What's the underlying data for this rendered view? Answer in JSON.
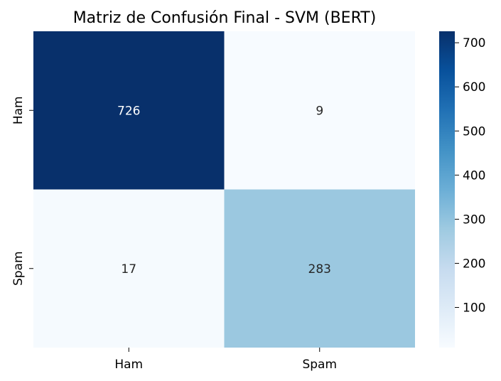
{
  "chart_data": {
    "type": "heatmap",
    "title": "Matriz de Confusión Final - SVM (BERT)",
    "xlabel": "",
    "ylabel": "",
    "x_categories": [
      "Ham",
      "Spam"
    ],
    "y_categories": [
      "Ham",
      "Spam"
    ],
    "values": [
      [
        726,
        9
      ],
      [
        17,
        283
      ]
    ],
    "colormap": "Blues",
    "colorbar": {
      "range": [
        9,
        726
      ],
      "ticks": [
        100,
        200,
        300,
        400,
        500,
        600,
        700
      ]
    },
    "color_stops": [
      "#f7fbff",
      "#deebf7",
      "#c6dbef",
      "#9ecae1",
      "#6baed6",
      "#4292c6",
      "#2171b5",
      "#08519c",
      "#08306b"
    ]
  }
}
